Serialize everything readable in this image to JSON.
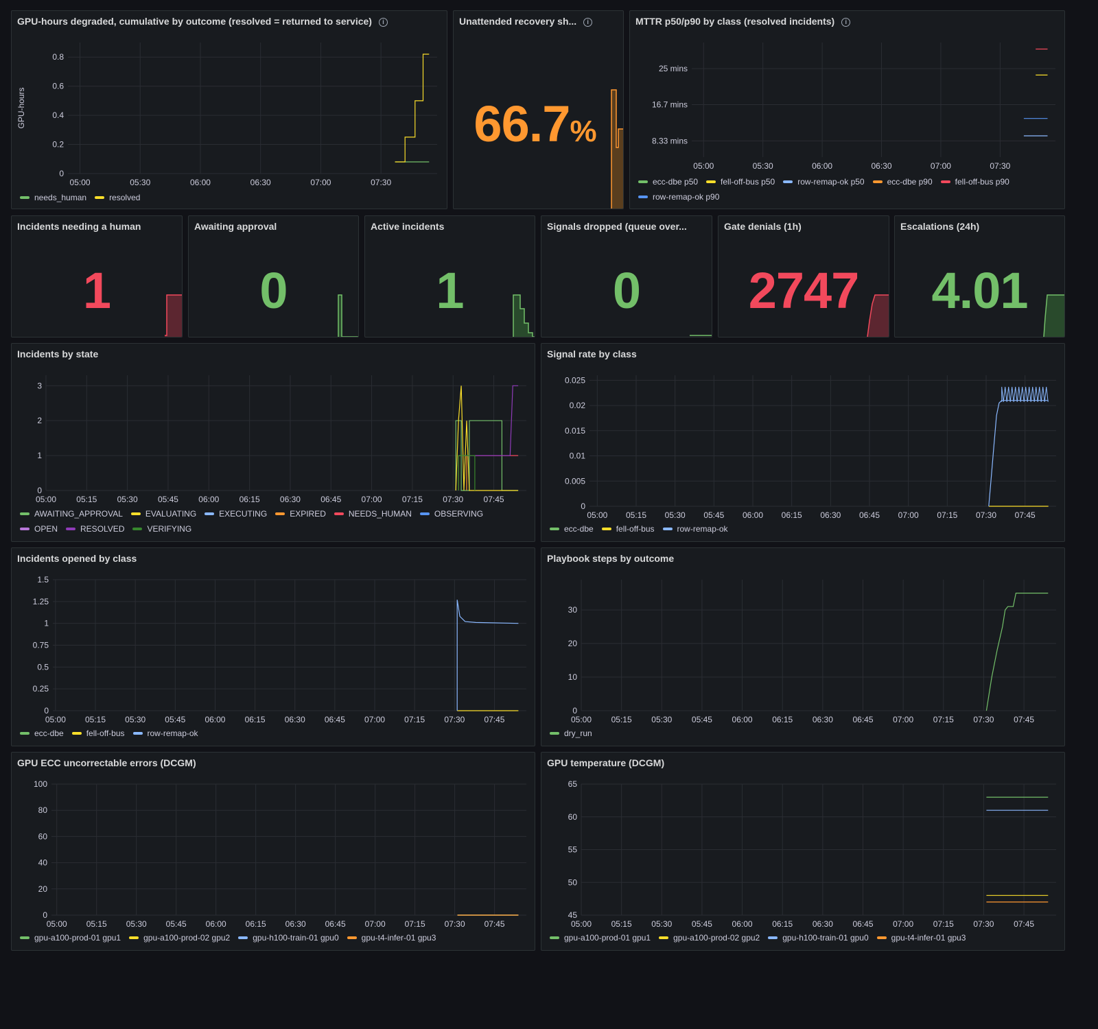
{
  "panels": {
    "gpu_hours": {
      "title": "GPU-hours degraded, cumulative by outcome (resolved = returned to service)",
      "chart_data": {
        "type": "line",
        "ylabel": "GPU-hours",
        "ylim": [
          0,
          0.9
        ],
        "yticks": [
          "0",
          "0.2",
          "0.4",
          "0.6",
          "0.8"
        ],
        "xticks": [
          "05:00",
          "05:30",
          "06:00",
          "06:30",
          "07:00",
          "07:30"
        ],
        "series": [
          {
            "name": "needs_human",
            "color": "#73bf69",
            "points": [
              [
                "07:37",
                0.08
              ],
              [
                "07:54",
                0.08
              ]
            ]
          },
          {
            "name": "resolved",
            "color": "#fade2a",
            "points": [
              [
                "07:37",
                0.08
              ],
              [
                "07:42",
                0.08
              ],
              [
                "07:42",
                0.25
              ],
              [
                "07:47",
                0.25
              ],
              [
                "07:47",
                0.5
              ],
              [
                "07:51",
                0.5
              ],
              [
                "07:51",
                0.82
              ],
              [
                "07:54",
                0.82
              ]
            ]
          }
        ]
      }
    },
    "unattended": {
      "title": "Unattended recovery sh...",
      "value": "66.7",
      "unit": "%",
      "color": "#ff9830"
    },
    "mttr": {
      "title": "MTTR p50/p90 by class (resolved incidents)",
      "chart_data": {
        "type": "line",
        "yticks": [
          "8.33 mins",
          "16.7 mins",
          "25 mins"
        ],
        "ytick_values": [
          8.33,
          16.7,
          25
        ],
        "ylim": [
          4.6,
          31
        ],
        "xticks": [
          "05:00",
          "05:30",
          "06:00",
          "06:30",
          "07:00",
          "07:30"
        ],
        "series": [
          {
            "name": "ecc-dbe p50",
            "color": "#73bf69",
            "points": []
          },
          {
            "name": "fell-off-bus p50",
            "color": "#fade2a",
            "points": [
              [
                "07:48",
                23.5
              ],
              [
                "07:54",
                23.5
              ]
            ]
          },
          {
            "name": "row-remap-ok p50",
            "color": "#8ab8ff",
            "points": [
              [
                "07:42",
                9.5
              ],
              [
                "07:54",
                9.5
              ]
            ]
          },
          {
            "name": "ecc-dbe p90",
            "color": "#ff9830",
            "points": []
          },
          {
            "name": "fell-off-bus p90",
            "color": "#f2495c",
            "points": [
              [
                "07:48",
                29.5
              ],
              [
                "07:54",
                29.5
              ]
            ]
          },
          {
            "name": "row-remap-ok p90",
            "color": "#5794f2",
            "points": [
              [
                "07:42",
                13.5
              ],
              [
                "07:54",
                13.5
              ]
            ]
          }
        ]
      }
    },
    "needing_human": {
      "title": "Incidents needing a human",
      "value": "1",
      "color": "#f2495c"
    },
    "awaiting_approval": {
      "title": "Awaiting approval",
      "value": "0",
      "color": "#73bf69"
    },
    "active_incidents": {
      "title": "Active incidents",
      "value": "1",
      "color": "#73bf69"
    },
    "signals_dropped": {
      "title": "Signals dropped (queue over...",
      "value": "0",
      "color": "#73bf69"
    },
    "gate_denials": {
      "title": "Gate denials (1h)",
      "value": "2747",
      "color": "#f2495c"
    },
    "escalations": {
      "title": "Escalations (24h)",
      "value": "4.01",
      "color": "#73bf69"
    },
    "incidents_by_state": {
      "title": "Incidents by state",
      "chart_data": {
        "type": "line",
        "ylim": [
          0,
          3.3
        ],
        "yticks": [
          "0",
          "1",
          "2",
          "3"
        ],
        "ytick_values": [
          0,
          1,
          2,
          3
        ],
        "xticks": [
          "05:00",
          "05:15",
          "05:30",
          "05:45",
          "06:00",
          "06:15",
          "06:30",
          "06:45",
          "07:00",
          "07:15",
          "07:30",
          "07:45"
        ],
        "series": [
          {
            "name": "AWAITING_APPROVAL",
            "color": "#73bf69",
            "points": [
              [
                "07:31",
                0
              ],
              [
                "07:31",
                2
              ],
              [
                "07:33",
                2
              ],
              [
                "07:33",
                0
              ],
              [
                "07:36",
                0
              ],
              [
                "07:36",
                2
              ],
              [
                "07:48",
                2
              ],
              [
                "07:48",
                0
              ],
              [
                "07:54",
                0
              ]
            ]
          },
          {
            "name": "EVALUATING",
            "color": "#fade2a",
            "points": [
              [
                "07:31",
                0
              ],
              [
                "07:32",
                2
              ],
              [
                "07:33",
                3
              ],
              [
                "07:34",
                0
              ],
              [
                "07:35",
                2
              ],
              [
                "07:36",
                0
              ],
              [
                "07:54",
                0
              ]
            ]
          },
          {
            "name": "EXECUTING",
            "color": "#8ab8ff",
            "points": []
          },
          {
            "name": "EXPIRED",
            "color": "#ff9830",
            "points": [
              [
                "07:32",
                0
              ],
              [
                "07:32",
                1
              ],
              [
                "07:35",
                1
              ],
              [
                "07:35",
                0
              ]
            ]
          },
          {
            "name": "NEEDS_HUMAN",
            "color": "#f2495c",
            "points": [
              [
                "07:38",
                1
              ],
              [
                "07:54",
                1
              ]
            ]
          },
          {
            "name": "OBSERVING",
            "color": "#5794f2",
            "points": []
          },
          {
            "name": "OPEN",
            "color": "#b877d9",
            "points": []
          },
          {
            "name": "RESOLVED",
            "color": "#8f3bb8",
            "points": [
              [
                "07:34",
                1
              ],
              [
                "07:51",
                1
              ],
              [
                "07:52",
                3
              ],
              [
                "07:54",
                3
              ]
            ]
          },
          {
            "name": "VERIFYING",
            "color": "#37872d",
            "points": [
              [
                "07:32",
                0
              ],
              [
                "07:32",
                1
              ],
              [
                "07:38",
                1
              ],
              [
                "07:38",
                0
              ]
            ]
          }
        ]
      }
    },
    "signal_rate": {
      "title": "Signal rate by class",
      "chart_data": {
        "type": "line",
        "ylim": [
          0,
          0.026
        ],
        "yticks": [
          "0",
          "0.005",
          "0.01",
          "0.015",
          "0.02",
          "0.025"
        ],
        "ytick_values": [
          0,
          0.005,
          0.01,
          0.015,
          0.02,
          0.025
        ],
        "xticks": [
          "05:00",
          "05:15",
          "05:30",
          "05:45",
          "06:00",
          "06:15",
          "06:30",
          "06:45",
          "07:00",
          "07:15",
          "07:30",
          "07:45"
        ],
        "series": [
          {
            "name": "ecc-dbe",
            "color": "#73bf69",
            "points": []
          },
          {
            "name": "fell-off-bus",
            "color": "#fade2a",
            "points": [
              [
                "07:31",
                0
              ],
              [
                "07:54",
                0
              ]
            ]
          },
          {
            "name": "row-remap-ok",
            "color": "#8ab8ff",
            "points": [
              [
                "07:31",
                0
              ],
              [
                "07:32",
                0.006
              ],
              [
                "07:33",
                0.012
              ],
              [
                "07:34",
                0.018
              ],
              [
                "07:35",
                0.0205
              ],
              [
                "07:36",
                0.021
              ],
              [
                "07:54",
                0.021
              ]
            ],
            "oscillation": {
              "from": "07:36",
              "to": "07:54",
              "low": 0.0207,
              "high": 0.0237
            }
          }
        ]
      }
    },
    "incidents_opened": {
      "title": "Incidents opened by class",
      "chart_data": {
        "type": "line",
        "ylim": [
          0,
          1.5
        ],
        "yticks": [
          "0",
          "0.25",
          "0.5",
          "0.75",
          "1",
          "1.25",
          "1.5"
        ],
        "ytick_values": [
          0,
          0.25,
          0.5,
          0.75,
          1,
          1.25,
          1.5
        ],
        "xticks": [
          "05:00",
          "05:15",
          "05:30",
          "05:45",
          "06:00",
          "06:15",
          "06:30",
          "06:45",
          "07:00",
          "07:15",
          "07:30",
          "07:45"
        ],
        "series": [
          {
            "name": "ecc-dbe",
            "color": "#73bf69",
            "points": []
          },
          {
            "name": "fell-off-bus",
            "color": "#fade2a",
            "points": [
              [
                "07:31",
                0
              ],
              [
                "07:54",
                0
              ]
            ]
          },
          {
            "name": "row-remap-ok",
            "color": "#8ab8ff",
            "points": [
              [
                "07:31",
                0
              ],
              [
                "07:31",
                1.27
              ],
              [
                "07:32",
                1.08
              ],
              [
                "07:34",
                1.02
              ],
              [
                "07:38",
                1.01
              ],
              [
                "07:54",
                1.0
              ]
            ]
          }
        ]
      }
    },
    "playbook_steps": {
      "title": "Playbook steps by outcome",
      "chart_data": {
        "type": "line",
        "ylim": [
          0,
          39
        ],
        "yticks": [
          "0",
          "10",
          "20",
          "30"
        ],
        "ytick_values": [
          0,
          10,
          20,
          30
        ],
        "xticks": [
          "05:00",
          "05:15",
          "05:30",
          "05:45",
          "06:00",
          "06:15",
          "06:30",
          "06:45",
          "07:00",
          "07:15",
          "07:30",
          "07:45"
        ],
        "series": [
          {
            "name": "dry_run",
            "color": "#73bf69",
            "points": [
              [
                "07:31",
                0
              ],
              [
                "07:32",
                5
              ],
              [
                "07:33",
                10
              ],
              [
                "07:35",
                18
              ],
              [
                "07:37",
                25
              ],
              [
                "07:38",
                30
              ],
              [
                "07:39",
                31
              ],
              [
                "07:41",
                31
              ],
              [
                "07:42",
                35
              ],
              [
                "07:54",
                35
              ]
            ]
          }
        ]
      }
    },
    "gpu_ecc": {
      "title": "GPU ECC uncorrectable errors (DCGM)",
      "chart_data": {
        "type": "line",
        "ylim": [
          0,
          100
        ],
        "yticks": [
          "0",
          "20",
          "40",
          "60",
          "80",
          "100"
        ],
        "ytick_values": [
          0,
          20,
          40,
          60,
          80,
          100
        ],
        "xticks": [
          "05:00",
          "05:15",
          "05:30",
          "05:45",
          "06:00",
          "06:15",
          "06:30",
          "06:45",
          "07:00",
          "07:15",
          "07:30",
          "07:45"
        ],
        "series": [
          {
            "name": "gpu-a100-prod-01 gpu1",
            "color": "#73bf69",
            "points": [
              [
                "07:31",
                0
              ],
              [
                "07:54",
                0
              ]
            ]
          },
          {
            "name": "gpu-a100-prod-02 gpu2",
            "color": "#fade2a",
            "points": [
              [
                "07:31",
                0
              ],
              [
                "07:54",
                0
              ]
            ]
          },
          {
            "name": "gpu-h100-train-01 gpu0",
            "color": "#8ab8ff",
            "points": [
              [
                "07:31",
                0
              ],
              [
                "07:54",
                0
              ]
            ]
          },
          {
            "name": "gpu-t4-infer-01 gpu3",
            "color": "#ff9830",
            "points": [
              [
                "07:31",
                0
              ],
              [
                "07:54",
                0
              ]
            ]
          }
        ]
      }
    },
    "gpu_temp": {
      "title": "GPU temperature (DCGM)",
      "chart_data": {
        "type": "line",
        "ylim": [
          45,
          65
        ],
        "yticks": [
          "45",
          "50",
          "55",
          "60",
          "65"
        ],
        "ytick_values": [
          45,
          50,
          55,
          60,
          65
        ],
        "xticks": [
          "05:00",
          "05:15",
          "05:30",
          "05:45",
          "06:00",
          "06:15",
          "06:30",
          "06:45",
          "07:00",
          "07:15",
          "07:30",
          "07:45"
        ],
        "series": [
          {
            "name": "gpu-a100-prod-01 gpu1",
            "color": "#73bf69",
            "points": [
              [
                "07:31",
                63
              ],
              [
                "07:54",
                63
              ]
            ]
          },
          {
            "name": "gpu-a100-prod-02 gpu2",
            "color": "#fade2a",
            "points": [
              [
                "07:31",
                48
              ],
              [
                "07:54",
                48
              ]
            ]
          },
          {
            "name": "gpu-h100-train-01 gpu0",
            "color": "#8ab8ff",
            "points": [
              [
                "07:31",
                61
              ],
              [
                "07:54",
                61
              ]
            ]
          },
          {
            "name": "gpu-t4-infer-01 gpu3",
            "color": "#ff9830",
            "points": [
              [
                "07:31",
                47
              ],
              [
                "07:54",
                47
              ]
            ]
          }
        ]
      }
    }
  }
}
